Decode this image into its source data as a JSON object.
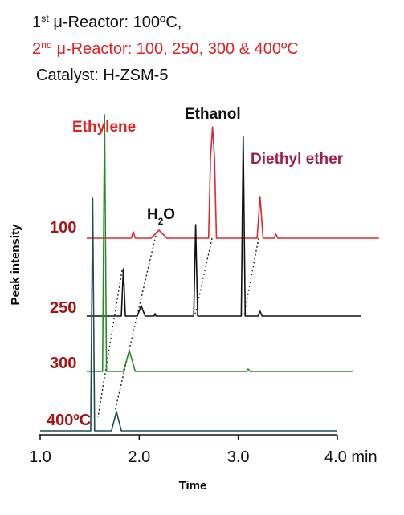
{
  "chart_data": {
    "type": "line",
    "header_lines": [
      {
        "parts": [
          "1",
          "st",
          " μ-Reactor: 100ºC,"
        ],
        "color": "#111111"
      },
      {
        "parts": [
          "2",
          "nd",
          " μ-Reactor: 100, 250, 300 & 400ºC"
        ],
        "color": "#e02020"
      },
      {
        "parts": [
          "Catalyst: H-ZSM-5"
        ],
        "color": "#111111"
      }
    ],
    "peak_labels": [
      {
        "parts": [
          "Ethylene"
        ],
        "color": "#e02020"
      },
      {
        "parts": [
          "Ethanol"
        ],
        "color": "#111111"
      },
      {
        "parts": [
          "Diethyl ether"
        ],
        "color": "#9e1f4a"
      },
      {
        "parts": [
          "H",
          "2",
          "O"
        ],
        "color": "#111111"
      }
    ],
    "x_label": "Time",
    "y_label": "Peak intensity",
    "xlim": [
      1.0,
      4.0
    ],
    "xticks": [
      {
        "value": 1.0,
        "label": "1.0"
      },
      {
        "value": 2.0,
        "label": "2.0"
      },
      {
        "value": 3.0,
        "label": "3.0"
      },
      {
        "value": 4.0,
        "label": "4.0 min"
      }
    ],
    "ylim": [
      0,
      340
    ],
    "label_color": "#a31515",
    "series": [
      {
        "name": "100",
        "color": "#e0282e",
        "x": [
          1.47,
          1.92,
          1.94,
          1.96,
          2.12,
          2.2,
          2.28,
          2.7,
          2.72,
          2.74,
          2.76,
          2.78,
          3.19,
          3.22,
          3.25,
          3.36,
          3.38,
          3.4,
          4.42
        ],
        "values": [
          0,
          0,
          8,
          0,
          0,
          10,
          0,
          0,
          100,
          139,
          100,
          0,
          0,
          52,
          0,
          0,
          5,
          0,
          0
        ]
      },
      {
        "name": "250",
        "color": "#111111",
        "x": [
          1.47,
          1.82,
          1.84,
          1.86,
          1.98,
          2.02,
          2.06,
          2.15,
          2.16,
          2.17,
          2.55,
          2.57,
          2.59,
          3.03,
          3.05,
          3.07,
          3.2,
          3.22,
          3.24,
          4.24
        ],
        "values": [
          0,
          0,
          59,
          0,
          0,
          13,
          0,
          0,
          3,
          0,
          0,
          114,
          0,
          0,
          224,
          0,
          0,
          6,
          0,
          0
        ]
      },
      {
        "name": "300",
        "color": "#2a8a2a",
        "x": [
          1.47,
          1.63,
          1.65,
          1.67,
          1.84,
          1.9,
          1.96,
          3.08,
          3.1,
          3.12,
          4.16
        ],
        "values": [
          0,
          0,
          320,
          0,
          0,
          26,
          0,
          0,
          3,
          0,
          0
        ]
      },
      {
        "name": "400ºC",
        "color": "#1f4e50",
        "x": [
          1.0,
          1.51,
          1.53,
          1.55,
          1.72,
          1.77,
          1.82,
          4.0
        ],
        "values": [
          0,
          0,
          290,
          0,
          0,
          24,
          0,
          0
        ]
      }
    ]
  }
}
